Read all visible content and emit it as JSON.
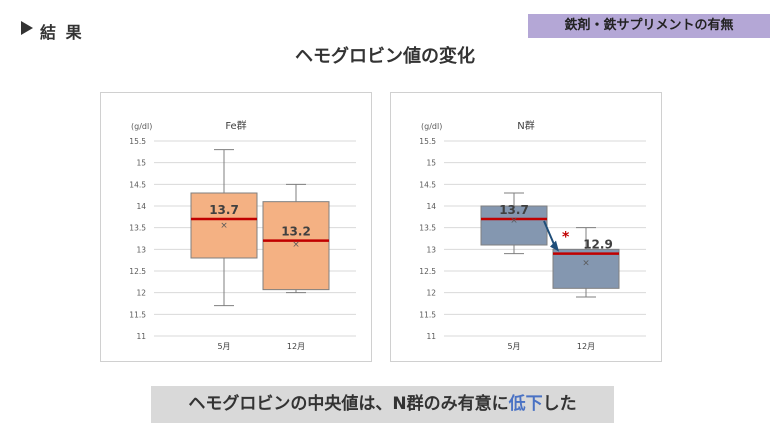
{
  "header": {
    "label": "結 果"
  },
  "badge": {
    "text": "鉄剤・鉄サプリメントの有無"
  },
  "title": "ヘモグロビン値の変化",
  "chart_data": [
    {
      "type": "box",
      "title": "Fe群",
      "ylabel": "(g/dl)",
      "ylim": [
        11,
        15.5
      ],
      "yticks": [
        "11",
        "11.5",
        "12",
        "12.5",
        "13",
        "13.5",
        "14",
        "14.5",
        "15",
        "15.5"
      ],
      "categories": [
        "5月",
        "12月"
      ],
      "box_color": "#f4b183",
      "median_color": "#c00000",
      "boxes": [
        {
          "category": "5月",
          "whisker_low": 11.7,
          "q1": 12.8,
          "median": 13.7,
          "q3": 14.3,
          "whisker_high": 15.3,
          "mean": 13.56,
          "median_label": "13.7"
        },
        {
          "category": "12月",
          "whisker_low": 12.0,
          "q1": 12.07,
          "median": 13.2,
          "q3": 14.1,
          "whisker_high": 14.5,
          "mean": 13.12,
          "median_label": "13.2"
        }
      ],
      "significance": ""
    },
    {
      "type": "box",
      "title": "N群",
      "ylabel": "(g/dl)",
      "ylim": [
        11,
        15.5
      ],
      "yticks": [
        "11",
        "11.5",
        "12",
        "12.5",
        "13",
        "13.5",
        "14",
        "14.5",
        "15",
        "15.5"
      ],
      "categories": [
        "5月",
        "12月"
      ],
      "box_color": "#8497b0",
      "median_color": "#c00000",
      "boxes": [
        {
          "category": "5月",
          "whisker_low": 12.9,
          "q1": 13.1,
          "median": 13.7,
          "q3": 14.0,
          "whisker_high": 14.3,
          "mean": 13.68,
          "median_label": "13.7"
        },
        {
          "category": "12月",
          "whisker_low": 11.9,
          "q1": 12.1,
          "median": 12.9,
          "q3": 13.0,
          "whisker_high": 13.5,
          "mean": 12.7,
          "median_label": "12.9"
        }
      ],
      "significance": "*"
    }
  ],
  "summary": {
    "before": "ヘモグロビンの中央値は、N群のみ有意に",
    "highlight": "低下",
    "after": "した"
  }
}
